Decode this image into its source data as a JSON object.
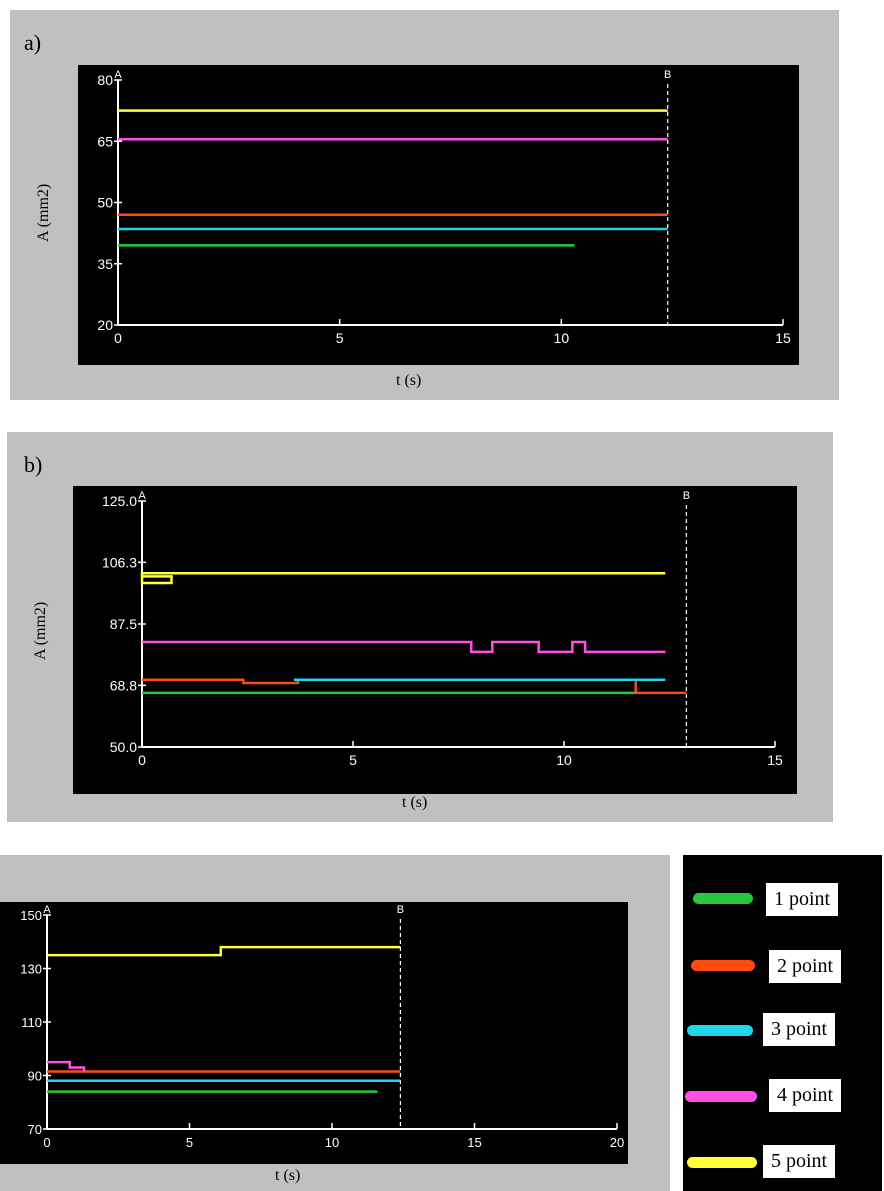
{
  "colors": {
    "panel_bg": "#c0c0c0",
    "plot_bg": "#000000",
    "axis": "#ffffff",
    "series": {
      "1 point": "#27c83c",
      "2 point": "#ff4a12",
      "3 point": "#20d6e8",
      "4 point": "#ff4fe4",
      "5 point": "#ffff3a"
    }
  },
  "panels": {
    "a": {
      "label": "a)"
    },
    "b": {
      "label": "b)"
    },
    "c": {
      "label": ""
    }
  },
  "legend": {
    "items": [
      {
        "name": "1 point"
      },
      {
        "name": "2 point"
      },
      {
        "name": "3 point"
      },
      {
        "name": "4 point"
      },
      {
        "name": "5 point"
      }
    ]
  },
  "chart_data": [
    {
      "type": "line",
      "panel": "a",
      "xlabel": "t  (s)",
      "ylabel": "A  (mm2)",
      "xlim": [
        0,
        15
      ],
      "ylim": [
        20,
        80
      ],
      "xticks": [
        0,
        5,
        10,
        15
      ],
      "xtick_labels": [
        "0",
        "5",
        "10",
        "15"
      ],
      "yticks": [
        20,
        35,
        50,
        65,
        80
      ],
      "ytick_labels": [
        "20",
        "35",
        "50",
        "65",
        "80"
      ],
      "markers": [
        {
          "label": "A",
          "x": 0
        },
        {
          "label": "B",
          "x": 12.4
        }
      ],
      "series": [
        {
          "name": "1 point",
          "points": [
            [
              0,
              39.5
            ],
            [
              10.3,
              39.5
            ]
          ]
        },
        {
          "name": "2 point",
          "points": [
            [
              0,
              47
            ],
            [
              12.4,
              47
            ]
          ]
        },
        {
          "name": "3 point",
          "points": [
            [
              0,
              43.5
            ],
            [
              12.4,
              43.5
            ]
          ]
        },
        {
          "name": "4 point",
          "points": [
            [
              0,
              65.5
            ],
            [
              12.4,
              65.5
            ]
          ]
        },
        {
          "name": "5 point",
          "points": [
            [
              0,
              72.5
            ],
            [
              12.4,
              72.5
            ]
          ]
        }
      ]
    },
    {
      "type": "line",
      "panel": "b",
      "xlabel": "t  (s)",
      "ylabel": "A  (mm2)",
      "xlim": [
        0,
        15
      ],
      "ylim": [
        50,
        125
      ],
      "xticks": [
        0,
        5,
        10,
        15
      ],
      "xtick_labels": [
        "0",
        "5",
        "10",
        "15"
      ],
      "yticks": [
        50,
        68.8,
        87.5,
        106.3,
        125
      ],
      "ytick_labels": [
        "50.0",
        "68.8",
        "87.5",
        "106.3",
        "125.0"
      ],
      "markers": [
        {
          "label": "A",
          "x": 0
        },
        {
          "label": "B",
          "x": 12.9
        }
      ],
      "series": [
        {
          "name": "1 point",
          "points": [
            [
              0,
              66.5
            ],
            [
              11.7,
              66.5
            ]
          ]
        },
        {
          "name": "2 point",
          "points": [
            [
              0,
              70.5
            ],
            [
              2.4,
              70.5
            ],
            [
              2.4,
              69.5
            ],
            [
              3.7,
              69.5
            ],
            [
              3.7,
              70.5
            ],
            [
              11.7,
              70.5
            ],
            [
              11.7,
              66.5
            ],
            [
              12.9,
              66.5
            ]
          ]
        },
        {
          "name": "3 point",
          "points": [
            [
              3.6,
              70.5
            ],
            [
              12.4,
              70.5
            ]
          ]
        },
        {
          "name": "4 point",
          "points": [
            [
              0,
              82
            ],
            [
              7.8,
              82
            ],
            [
              7.8,
              79
            ],
            [
              8.3,
              79
            ],
            [
              8.3,
              82
            ],
            [
              9.4,
              82
            ],
            [
              9.4,
              79
            ],
            [
              10.2,
              79
            ],
            [
              10.2,
              82
            ],
            [
              10.5,
              82
            ],
            [
              10.5,
              79
            ],
            [
              12.4,
              79
            ]
          ]
        },
        {
          "name": "5 point",
          "points": [
            [
              0,
              102
            ],
            [
              0.7,
              102
            ],
            [
              0.7,
              100
            ],
            [
              0,
              100
            ],
            [
              0,
              103
            ],
            [
              12.4,
              103
            ]
          ]
        }
      ]
    },
    {
      "type": "line",
      "panel": "c",
      "xlabel": "t  (s)",
      "ylabel": "",
      "xlim": [
        0,
        20
      ],
      "ylim": [
        70,
        150
      ],
      "xticks": [
        0,
        5,
        10,
        15,
        20
      ],
      "xtick_labels": [
        "0",
        "5",
        "10",
        "15",
        "20"
      ],
      "yticks": [
        70,
        90,
        110,
        130,
        150
      ],
      "ytick_labels": [
        "70",
        "90",
        "110",
        "130",
        "150"
      ],
      "markers": [
        {
          "label": "A",
          "x": 0
        },
        {
          "label": "B",
          "x": 12.4
        }
      ],
      "series": [
        {
          "name": "1 point",
          "points": [
            [
              0,
              84
            ],
            [
              11.6,
              84
            ]
          ]
        },
        {
          "name": "2 point",
          "points": [
            [
              0,
              91.5
            ],
            [
              12.4,
              91.5
            ]
          ]
        },
        {
          "name": "3 point",
          "points": [
            [
              0,
              88
            ],
            [
              12.4,
              88
            ]
          ]
        },
        {
          "name": "4 point",
          "points": [
            [
              0,
              95
            ],
            [
              0.8,
              95
            ],
            [
              0.8,
              93
            ],
            [
              1.3,
              93
            ],
            [
              1.3,
              91.5
            ]
          ]
        },
        {
          "name": "5 point",
          "points": [
            [
              0,
              135
            ],
            [
              6.1,
              135
            ],
            [
              6.1,
              138
            ],
            [
              12.4,
              138
            ]
          ]
        }
      ]
    }
  ]
}
